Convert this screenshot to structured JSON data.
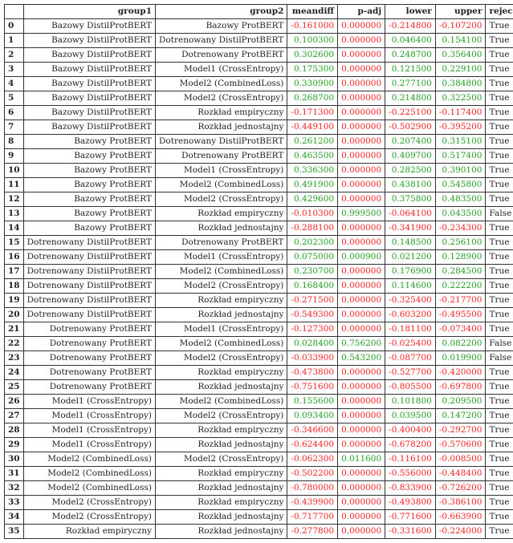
{
  "columns": [
    "",
    "group1",
    "group2",
    "meandiff",
    "p-adj",
    "lower",
    "upper",
    "reject"
  ],
  "rows": [
    {
      "idx": "0",
      "group1": "Bazowy DistilProtBERT",
      "group2": "Bazowy ProtBERT",
      "meandiff": "-0.161000",
      "padj": "0.000000",
      "lower": "-0.214800",
      "upper": "-0.107200",
      "reject": "True"
    },
    {
      "idx": "1",
      "group1": "Bazowy DistilProtBERT",
      "group2": "Dotrenowany DistilProtBERT",
      "meandiff": "0.100300",
      "padj": "0.000000",
      "lower": "0.046400",
      "upper": "0.154100",
      "reject": "True"
    },
    {
      "idx": "2",
      "group1": "Bazowy DistilProtBERT",
      "group2": "Dotrenowany ProtBERT",
      "meandiff": "0.302600",
      "padj": "0.000000",
      "lower": "0.248700",
      "upper": "0.356400",
      "reject": "True"
    },
    {
      "idx": "3",
      "group1": "Bazowy DistilProtBERT",
      "group2": "Model1 (CrossEntropy)",
      "meandiff": "0.175300",
      "padj": "0.000000",
      "lower": "0.121500",
      "upper": "0.229100",
      "reject": "True"
    },
    {
      "idx": "4",
      "group1": "Bazowy DistilProtBERT",
      "group2": "Model2 (CombinedLoss)",
      "meandiff": "0.330900",
      "padj": "0.000000",
      "lower": "0.277100",
      "upper": "0.384800",
      "reject": "True"
    },
    {
      "idx": "5",
      "group1": "Bazowy DistilProtBERT",
      "group2": "Model2 (CrossEntropy)",
      "meandiff": "0.268700",
      "padj": "0.000000",
      "lower": "0.214800",
      "upper": "0.322500",
      "reject": "True"
    },
    {
      "idx": "6",
      "group1": "Bazowy DistilProtBERT",
      "group2": "Rozkład empiryczny",
      "meandiff": "-0.171300",
      "padj": "0.000000",
      "lower": "-0.225100",
      "upper": "-0.117400",
      "reject": "True"
    },
    {
      "idx": "7",
      "group1": "Bazowy DistilProtBERT",
      "group2": "Rozkład jednostajny",
      "meandiff": "-0.449100",
      "padj": "0.000000",
      "lower": "-0.502900",
      "upper": "-0.395200",
      "reject": "True"
    },
    {
      "idx": "8",
      "group1": "Bazowy ProtBERT",
      "group2": "Dotrenowany DistilProtBERT",
      "meandiff": "0.261200",
      "padj": "0.000000",
      "lower": "0.207400",
      "upper": "0.315100",
      "reject": "True"
    },
    {
      "idx": "9",
      "group1": "Bazowy ProtBERT",
      "group2": "Dotrenowany ProtBERT",
      "meandiff": "0.463500",
      "padj": "0.000000",
      "lower": "0.409700",
      "upper": "0.517400",
      "reject": "True"
    },
    {
      "idx": "10",
      "group1": "Bazowy ProtBERT",
      "group2": "Model1 (CrossEntropy)",
      "meandiff": "0.336300",
      "padj": "0.000000",
      "lower": "0.282500",
      "upper": "0.390100",
      "reject": "True"
    },
    {
      "idx": "11",
      "group1": "Bazowy ProtBERT",
      "group2": "Model2 (CombinedLoss)",
      "meandiff": "0.491900",
      "padj": "0.000000",
      "lower": "0.438100",
      "upper": "0.545800",
      "reject": "True"
    },
    {
      "idx": "12",
      "group1": "Bazowy ProtBERT",
      "group2": "Model2 (CrossEntropy)",
      "meandiff": "0.429600",
      "padj": "0.000000",
      "lower": "0.375800",
      "upper": "0.483500",
      "reject": "True"
    },
    {
      "idx": "13",
      "group1": "Bazowy ProtBERT",
      "group2": "Rozkład empiryczny",
      "meandiff": "-0.010300",
      "padj": "0.999500",
      "lower": "-0.064100",
      "upper": "0.043500",
      "reject": "False"
    },
    {
      "idx": "14",
      "group1": "Bazowy ProtBERT",
      "group2": "Rozkład jednostajny",
      "meandiff": "-0.288100",
      "padj": "0.000000",
      "lower": "-0.341900",
      "upper": "-0.234300",
      "reject": "True"
    },
    {
      "idx": "15",
      "group1": "Dotrenowany DistilProtBERT",
      "group2": "Dotrenowany ProtBERT",
      "meandiff": "0.202300",
      "padj": "0.000000",
      "lower": "0.148500",
      "upper": "0.256100",
      "reject": "True"
    },
    {
      "idx": "16",
      "group1": "Dotrenowany DistilProtBERT",
      "group2": "Model1 (CrossEntropy)",
      "meandiff": "0.075000",
      "padj": "0.000900",
      "lower": "0.021200",
      "upper": "0.128900",
      "reject": "True"
    },
    {
      "idx": "17",
      "group1": "Dotrenowany DistilProtBERT",
      "group2": "Model2 (CombinedLoss)",
      "meandiff": "0.230700",
      "padj": "0.000000",
      "lower": "0.176900",
      "upper": "0.284500",
      "reject": "True"
    },
    {
      "idx": "18",
      "group1": "Dotrenowany DistilProtBERT",
      "group2": "Model2 (CrossEntropy)",
      "meandiff": "0.168400",
      "padj": "0.000000",
      "lower": "0.114600",
      "upper": "0.222200",
      "reject": "True"
    },
    {
      "idx": "19",
      "group1": "Dotrenowany DistilProtBERT",
      "group2": "Rozkład empiryczny",
      "meandiff": "-0.271500",
      "padj": "0.000000",
      "lower": "-0.325400",
      "upper": "-0.217700",
      "reject": "True"
    },
    {
      "idx": "20",
      "group1": "Dotrenowany DistilProtBERT",
      "group2": "Rozkład jednostajny",
      "meandiff": "-0.549300",
      "padj": "0.000000",
      "lower": "-0.603200",
      "upper": "-0.495500",
      "reject": "True"
    },
    {
      "idx": "21",
      "group1": "Dotrenowany ProtBERT",
      "group2": "Model1 (CrossEntropy)",
      "meandiff": "-0.127300",
      "padj": "0.000000",
      "lower": "-0.181100",
      "upper": "-0.073400",
      "reject": "True"
    },
    {
      "idx": "22",
      "group1": "Dotrenowany ProtBERT",
      "group2": "Model2 (CombinedLoss)",
      "meandiff": "0.028400",
      "padj": "0.756200",
      "lower": "-0.025400",
      "upper": "0.082200",
      "reject": "False"
    },
    {
      "idx": "23",
      "group1": "Dotrenowany ProtBERT",
      "group2": "Model2 (CrossEntropy)",
      "meandiff": "-0.033900",
      "padj": "0.543200",
      "lower": "-0.087700",
      "upper": "0.019900",
      "reject": "False"
    },
    {
      "idx": "24",
      "group1": "Dotrenowany ProtBERT",
      "group2": "Rozkład empiryczny",
      "meandiff": "-0.473800",
      "padj": "0.000000",
      "lower": "-0.527700",
      "upper": "-0.420000",
      "reject": "True"
    },
    {
      "idx": "25",
      "group1": "Dotrenowany ProtBERT",
      "group2": "Rozkład jednostajny",
      "meandiff": "-0.751600",
      "padj": "0.000000",
      "lower": "-0.805500",
      "upper": "-0.697800",
      "reject": "True"
    },
    {
      "idx": "26",
      "group1": "Model1 (CrossEntropy)",
      "group2": "Model2 (CombinedLoss)",
      "meandiff": "0.155600",
      "padj": "0.000000",
      "lower": "0.101800",
      "upper": "0.209500",
      "reject": "True"
    },
    {
      "idx": "27",
      "group1": "Model1 (CrossEntropy)",
      "group2": "Model2 (CrossEntropy)",
      "meandiff": "0.093400",
      "padj": "0.000000",
      "lower": "0.039500",
      "upper": "0.147200",
      "reject": "True"
    },
    {
      "idx": "28",
      "group1": "Model1 (CrossEntropy)",
      "group2": "Rozkład empiryczny",
      "meandiff": "-0.346600",
      "padj": "0.000000",
      "lower": "-0.400400",
      "upper": "-0.292700",
      "reject": "True"
    },
    {
      "idx": "29",
      "group1": "Model1 (CrossEntropy)",
      "group2": "Rozkład jednostajny",
      "meandiff": "-0.624400",
      "padj": "0.000000",
      "lower": "-0.678200",
      "upper": "-0.570600",
      "reject": "True"
    },
    {
      "idx": "30",
      "group1": "Model2 (CombinedLoss)",
      "group2": "Model2 (CrossEntropy)",
      "meandiff": "-0.062300",
      "padj": "0.011600",
      "lower": "-0.116100",
      "upper": "-0.008500",
      "reject": "True"
    },
    {
      "idx": "31",
      "group1": "Model2 (CombinedLoss)",
      "group2": "Rozkład empiryczny",
      "meandiff": "-0.502200",
      "padj": "0.000000",
      "lower": "-0.556000",
      "upper": "-0.448400",
      "reject": "True"
    },
    {
      "idx": "32",
      "group1": "Model2 (CombinedLoss)",
      "group2": "Rozkład jednostajny",
      "meandiff": "-0.780000",
      "padj": "0.000000",
      "lower": "-0.833900",
      "upper": "-0.726200",
      "reject": "True"
    },
    {
      "idx": "33",
      "group1": "Model2 (CrossEntropy)",
      "group2": "Rozkład empiryczny",
      "meandiff": "-0.439900",
      "padj": "0.000000",
      "lower": "-0.493800",
      "upper": "-0.386100",
      "reject": "True"
    },
    {
      "idx": "34",
      "group1": "Model2 (CrossEntropy)",
      "group2": "Rozkład jednostajny",
      "meandiff": "-0.717700",
      "padj": "0.000000",
      "lower": "-0.771600",
      "upper": "-0.663900",
      "reject": "True"
    },
    {
      "idx": "35",
      "group1": "Rozkład empiryczny",
      "group2": "Rozkład jednostajny",
      "meandiff": "-0.277800",
      "padj": "0.000000",
      "lower": "-0.331600",
      "upper": "-0.224000",
      "reject": "True"
    }
  ],
  "colors": {
    "positive": "#22a022",
    "negative": "#ff2222"
  }
}
